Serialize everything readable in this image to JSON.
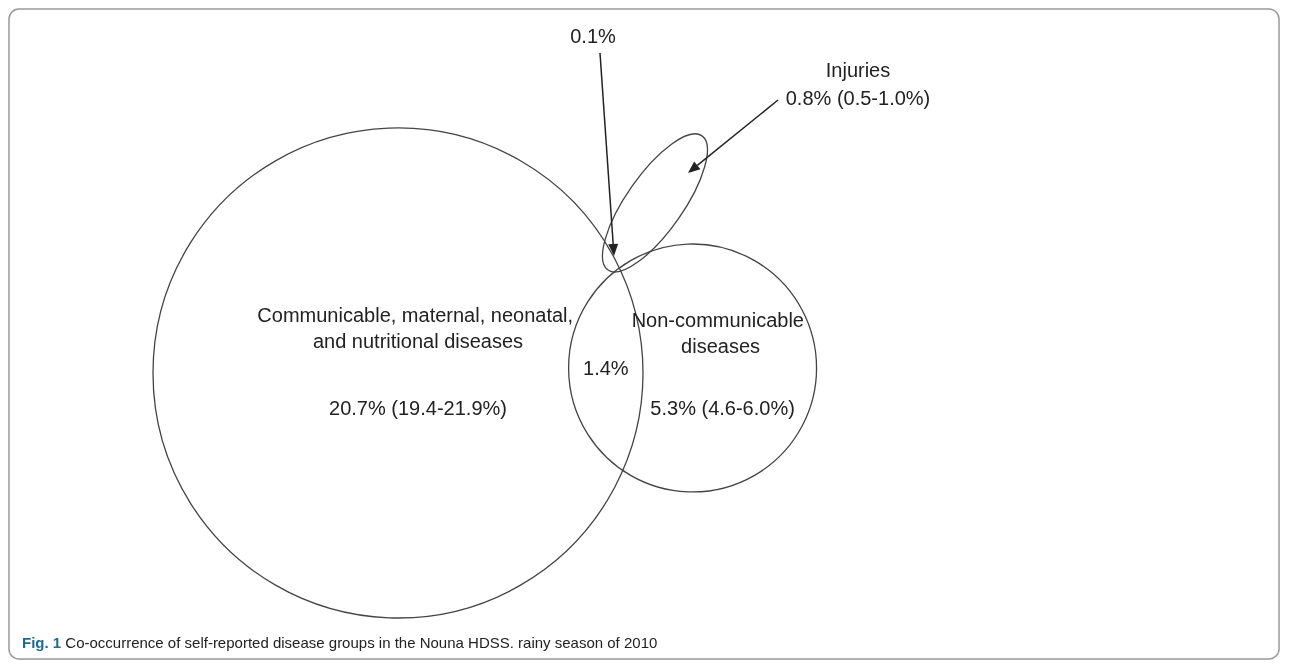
{
  "chart_data": {
    "type": "other",
    "title": "Fig. 1 Co-occurrence of self-reported disease groups in the Nouna HDSS. rainy season of 2010",
    "categories": [
      "Communicable, maternal, neonatal, and nutritional diseases",
      "Non-communicable diseases",
      "Injuries"
    ],
    "values": [
      20.7,
      5.3,
      0.8
    ],
    "value_labels": [
      "20.7% (19.4-21.9%)",
      "5.3% (4.6-6.0%)",
      "0.8% (0.5-1.0%)"
    ],
    "annotations": [
      "1.4%",
      "0.1%"
    ]
  }
}
